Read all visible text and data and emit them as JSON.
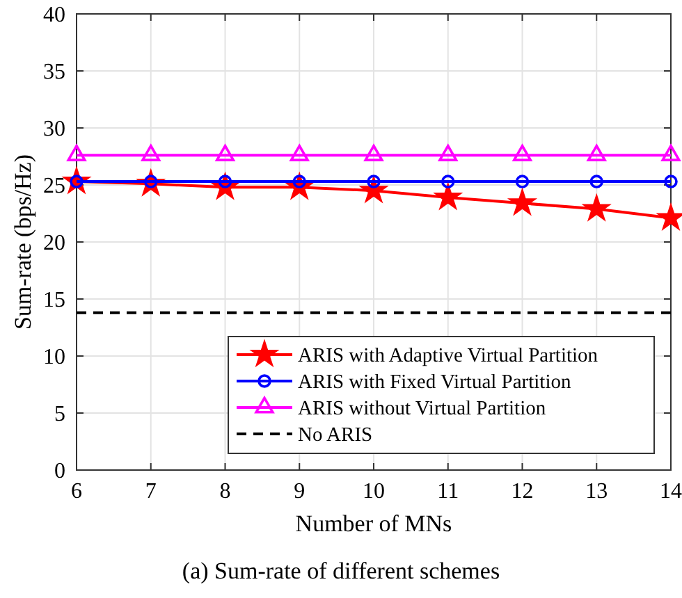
{
  "chart_data": {
    "type": "line",
    "xlabel": "Number of MNs",
    "ylabel": "Sum-rate (bps/Hz)",
    "x": [
      6,
      7,
      8,
      9,
      10,
      11,
      12,
      13,
      14
    ],
    "series": [
      {
        "name": "ARIS with Adaptive Virtual Partition",
        "color": "#ff0000",
        "marker": "star",
        "values": [
          25.3,
          25.1,
          24.8,
          24.8,
          24.5,
          23.9,
          23.4,
          22.9,
          22.1
        ]
      },
      {
        "name": "ARIS with Fixed Virtual Partition",
        "color": "#0000ff",
        "marker": "circle",
        "values": [
          25.3,
          25.3,
          25.3,
          25.3,
          25.3,
          25.3,
          25.3,
          25.3,
          25.3
        ]
      },
      {
        "name": "ARIS without Virtual Partition",
        "color": "#ff00ff",
        "marker": "triangle",
        "values": [
          27.6,
          27.6,
          27.6,
          27.6,
          27.6,
          27.6,
          27.6,
          27.6,
          27.6
        ]
      },
      {
        "name": "No ARIS",
        "color": "#000000",
        "marker": "none",
        "line_style": "dashed",
        "values": [
          13.8,
          13.8,
          13.8,
          13.8,
          13.8,
          13.8,
          13.8,
          13.8,
          13.8
        ]
      }
    ],
    "xlim": [
      6,
      14
    ],
    "xticks": [
      6,
      7,
      8,
      9,
      10,
      11,
      12,
      13,
      14
    ],
    "ylim": [
      0,
      40
    ],
    "yticks": [
      0,
      5,
      10,
      15,
      20,
      25,
      30,
      35,
      40
    ],
    "grid": true,
    "legend": "bottom right",
    "annotations": [
      "(a) Sum-rate of different schemes"
    ]
  }
}
